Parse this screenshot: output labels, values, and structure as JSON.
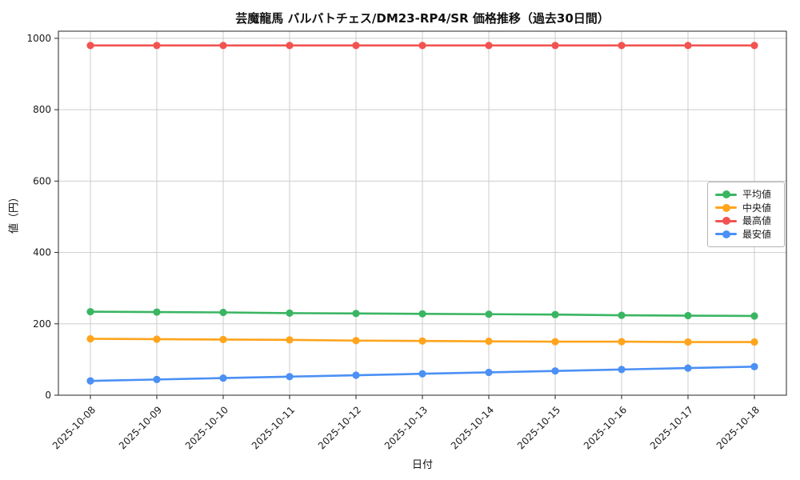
{
  "chart_data": {
    "type": "line",
    "title": "芸魔龍馬 バルバトチェス/DM23-RP4/SR 価格推移（過去30日間）",
    "xlabel": "日付",
    "ylabel": "値（円）",
    "x": [
      "2025-10-08",
      "2025-10-09",
      "2025-10-10",
      "2025-10-11",
      "2025-10-12",
      "2025-10-13",
      "2025-10-14",
      "2025-10-15",
      "2025-10-16",
      "2025-10-17",
      "2025-10-18"
    ],
    "series": [
      {
        "name": "平均値",
        "color": "#3ab562",
        "values": [
          234,
          233,
          232,
          230,
          229,
          228,
          227,
          226,
          224,
          223,
          222
        ]
      },
      {
        "name": "中央値",
        "color": "#ffa41c",
        "values": [
          158,
          157,
          156,
          155,
          153,
          152,
          151,
          150,
          150,
          149,
          149
        ]
      },
      {
        "name": "最高値",
        "color": "#f25350",
        "values": [
          980,
          980,
          980,
          980,
          980,
          980,
          980,
          980,
          980,
          980,
          980
        ]
      },
      {
        "name": "最安値",
        "color": "#4b90f5",
        "values": [
          40,
          44,
          48,
          52,
          56,
          60,
          64,
          68,
          72,
          76,
          80
        ]
      }
    ],
    "yticks": [
      0,
      200,
      400,
      600,
      800,
      1000
    ],
    "ylim": [
      0,
      1020
    ],
    "grid": true,
    "grid_color": "#cdcdcd",
    "spine_color": "#262626",
    "legend_position": "right-middle",
    "marker": "circle"
  }
}
